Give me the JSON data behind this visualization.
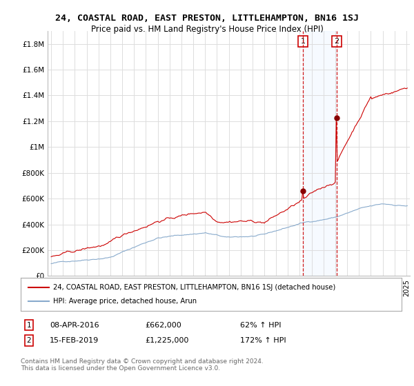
{
  "title": "24, COASTAL ROAD, EAST PRESTON, LITTLEHAMPTON, BN16 1SJ",
  "subtitle": "Price paid vs. HM Land Registry's House Price Index (HPI)",
  "hpi_label": "HPI: Average price, detached house, Arun",
  "property_label": "24, COASTAL ROAD, EAST PRESTON, LITTLEHAMPTON, BN16 1SJ (detached house)",
  "footer": "Contains HM Land Registry data © Crown copyright and database right 2024.\nThis data is licensed under the Open Government Licence v3.0.",
  "sale1_date": "08-APR-2016",
  "sale1_price": "£662,000",
  "sale1_pct": "62% ↑ HPI",
  "sale2_date": "15-FEB-2019",
  "sale2_price": "£1,225,000",
  "sale2_pct": "172% ↑ HPI",
  "sale1_year": 2016.27,
  "sale1_value": 662000,
  "sale2_year": 2019.12,
  "sale2_value": 1225000,
  "property_color": "#cc0000",
  "hpi_color": "#88aacc",
  "sale_marker_color": "#880000",
  "dashed_line_color": "#cc0000",
  "shade_color": "#ddeeff",
  "ylim": [
    0,
    1900000
  ],
  "yticks": [
    0,
    200000,
    400000,
    600000,
    800000,
    1000000,
    1200000,
    1400000,
    1600000,
    1800000
  ],
  "ytick_labels": [
    "£0",
    "£200K",
    "£400K",
    "£600K",
    "£800K",
    "£1M",
    "£1.2M",
    "£1.4M",
    "£1.6M",
    "£1.8M"
  ],
  "xlim_start": 1994.7,
  "xlim_end": 2025.3,
  "background_color": "#ffffff",
  "grid_color": "#dddddd"
}
